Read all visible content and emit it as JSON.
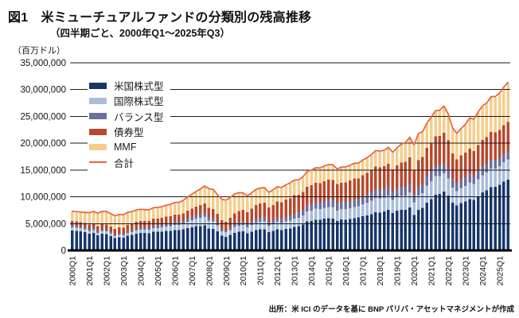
{
  "header": {
    "title": "図1　米ミューチュアルファンドの分類別の残高推移",
    "subtitle": "（四半期ごと、2000年Q1～2025年Q3）"
  },
  "y_axis": {
    "unit_label": "（百万ドル）",
    "tick_labels": [
      "0",
      "5,000,000",
      "10,000,000",
      "15,000,000",
      "20,000,000",
      "25,000,000",
      "30,000,000",
      "35,000,000"
    ]
  },
  "x_axis": {
    "start": "2000Q1",
    "end": "2025Q3",
    "tick_labels": [
      "2000Q1",
      "2001Q1",
      "2002Q1",
      "2003Q1",
      "2004Q1",
      "2005Q1",
      "2006Q1",
      "2007Q1",
      "2008Q1",
      "2009Q1",
      "2010Q1",
      "2011Q1",
      "2012Q1",
      "2013Q1",
      "2014Q1",
      "2015Q1",
      "2016Q1",
      "2017Q1",
      "2018Q1",
      "2019Q1",
      "2020Q1",
      "2021Q1",
      "2022Q1",
      "2023Q1",
      "2024Q1",
      "2025Q1"
    ]
  },
  "legend": [
    {
      "label": "米国株式型",
      "color": "#16356A",
      "swatch": "box"
    },
    {
      "label": "国際株式型",
      "color": "#A9BDD9",
      "swatch": "box"
    },
    {
      "label": "バランス型",
      "color": "#6B6F9D",
      "swatch": "box"
    },
    {
      "label": "債券型",
      "color": "#B8482C",
      "swatch": "box"
    },
    {
      "label": "MMF",
      "color": "#F5CD8C",
      "swatch": "box"
    },
    {
      "label": "合計",
      "color": "#E8603C",
      "swatch": "line"
    }
  ],
  "source": "出所：米 ICI のデータを基に BNP パリバ・アセットマネジメントが作成",
  "chart_data": {
    "type": "bar",
    "subtype": "stacked-bars-with-total-line",
    "unit": "million USD",
    "n_quarters": 103,
    "quarters_start": "2000Q1",
    "quarters_end": "2025Q3",
    "x_tick_labels": [
      "2000Q1",
      "2001Q1",
      "2002Q1",
      "2003Q1",
      "2004Q1",
      "2005Q1",
      "2006Q1",
      "2007Q1",
      "2008Q1",
      "2009Q1",
      "2010Q1",
      "2011Q1",
      "2012Q1",
      "2013Q1",
      "2014Q1",
      "2015Q1",
      "2016Q1",
      "2017Q1",
      "2018Q1",
      "2019Q1",
      "2020Q1",
      "2021Q1",
      "2022Q1",
      "2023Q1",
      "2024Q1",
      "2025Q1"
    ],
    "ylim": [
      0,
      35000000
    ],
    "y_ticks": [
      0,
      5000000,
      10000000,
      15000000,
      20000000,
      25000000,
      30000000,
      35000000
    ],
    "grid": true,
    "legend_position": "upper-left-inside",
    "series": [
      {
        "name": "米国株式型",
        "color": "#16356A",
        "values": [
          3700000,
          3650000,
          3550000,
          3400000,
          3150000,
          3300000,
          2850000,
          3100000,
          3050000,
          2700000,
          2300000,
          2450000,
          2400000,
          2750000,
          2900000,
          3150000,
          3250000,
          3250000,
          3200000,
          3450000,
          3450000,
          3500000,
          3600000,
          3650000,
          3800000,
          3750000,
          3900000,
          4150000,
          4300000,
          4500000,
          4550000,
          4650000,
          4100000,
          4000000,
          3550000,
          2750000,
          2550000,
          2900000,
          3300000,
          3450000,
          3550000,
          3200000,
          3500000,
          3800000,
          3950000,
          3950000,
          3400000,
          3650000,
          3950000,
          3800000,
          4000000,
          4050000,
          4400000,
          4550000,
          4850000,
          5400000,
          5500000,
          5700000,
          5700000,
          5900000,
          6000000,
          5950000,
          5500000,
          5750000,
          5700000,
          5850000,
          6000000,
          6150000,
          6400000,
          6550000,
          6750000,
          7150000,
          7050000,
          7250000,
          7600000,
          7000000,
          7400000,
          7600000,
          7600000,
          8000000,
          6600000,
          7600000,
          7900000,
          8900000,
          9600000,
          10400000,
          10500000,
          11000000,
          10200000,
          8900000,
          8400000,
          8800000,
          9100000,
          9600000,
          9400000,
          10100000,
          10800000,
          11200000,
          11800000,
          11900000,
          12200000,
          12800000,
          13200000
        ]
      },
      {
        "name": "国際株式型",
        "color": "#A9BDD9",
        "values": [
          620000,
          600000,
          580000,
          550000,
          500000,
          520000,
          450000,
          500000,
          500000,
          460000,
          400000,
          420000,
          410000,
          470000,
          510000,
          580000,
          610000,
          620000,
          630000,
          710000,
          740000,
          770000,
          850000,
          900000,
          980000,
          1000000,
          1050000,
          1200000,
          1300000,
          1450000,
          1550000,
          1650000,
          1450000,
          1400000,
          1100000,
          800000,
          750000,
          900000,
          1080000,
          1160000,
          1180000,
          1080000,
          1220000,
          1350000,
          1400000,
          1450000,
          1200000,
          1250000,
          1380000,
          1320000,
          1420000,
          1500000,
          1550000,
          1550000,
          1700000,
          1900000,
          1950000,
          2050000,
          2000000,
          2000000,
          2100000,
          2150000,
          1950000,
          2000000,
          2000000,
          2000000,
          2100000,
          2050000,
          2200000,
          2350000,
          2500000,
          2650000,
          2650000,
          2600000,
          2650000,
          2400000,
          2550000,
          2600000,
          2600000,
          2800000,
          2400000,
          2700000,
          2800000,
          3200000,
          3300000,
          3450000,
          3400000,
          3400000,
          3250000,
          2850000,
          2650000,
          2850000,
          2950000,
          3050000,
          3000000,
          3150000,
          3250000,
          3300000,
          3450000,
          3400000,
          3500000,
          3650000,
          3750000
        ]
      },
      {
        "name": "バランス型",
        "color": "#6B6F9D",
        "values": [
          350000,
          350000,
          340000,
          330000,
          320000,
          330000,
          310000,
          330000,
          330000,
          310000,
          290000,
          300000,
          300000,
          330000,
          350000,
          380000,
          400000,
          410000,
          420000,
          450000,
          460000,
          470000,
          490000,
          500000,
          530000,
          540000,
          560000,
          600000,
          630000,
          660000,
          680000,
          720000,
          660000,
          650000,
          580000,
          480000,
          450000,
          520000,
          600000,
          640000,
          660000,
          620000,
          680000,
          740000,
          780000,
          800000,
          720000,
          760000,
          820000,
          820000,
          870000,
          900000,
          970000,
          1000000,
          1070000,
          1170000,
          1220000,
          1280000,
          1280000,
          1330000,
          1370000,
          1380000,
          1300000,
          1340000,
          1340000,
          1370000,
          1400000,
          1420000,
          1470000,
          1520000,
          1570000,
          1640000,
          1620000,
          1640000,
          1700000,
          1550000,
          1600000,
          1650000,
          1650000,
          1750000,
          1550000,
          1650000,
          1700000,
          1800000,
          1850000,
          1900000,
          1900000,
          1950000,
          1850000,
          1650000,
          1550000,
          1600000,
          1620000,
          1650000,
          1600000,
          1650000,
          1680000,
          1660000,
          1680000,
          1620000,
          1600000,
          1580000,
          1550000
        ]
      },
      {
        "name": "債券型",
        "color": "#B8482C",
        "values": [
          800000,
          800000,
          810000,
          820000,
          860000,
          880000,
          930000,
          930000,
          950000,
          1000000,
          1050000,
          1120000,
          1150000,
          1220000,
          1220000,
          1240000,
          1260000,
          1240000,
          1270000,
          1290000,
          1310000,
          1320000,
          1330000,
          1350000,
          1380000,
          1380000,
          1420000,
          1480000,
          1550000,
          1580000,
          1640000,
          1700000,
          1700000,
          1690000,
          1600000,
          1570000,
          1620000,
          1770000,
          1950000,
          2080000,
          2200000,
          2250000,
          2420000,
          2530000,
          2600000,
          2690000,
          2700000,
          2800000,
          2950000,
          3050000,
          3200000,
          3300000,
          3380000,
          3280000,
          3300000,
          3400000,
          3470000,
          3570000,
          3570000,
          3650000,
          3700000,
          3670000,
          3600000,
          3550000,
          3650000,
          3800000,
          3900000,
          3800000,
          3950000,
          4050000,
          4150000,
          4200000,
          4200000,
          4200000,
          4250000,
          4150000,
          4350000,
          4550000,
          4700000,
          4800000,
          4500000,
          4900000,
          5050000,
          5250000,
          5350000,
          5500000,
          5550000,
          5600000,
          5250000,
          4700000,
          4400000,
          4450000,
          4550000,
          4650000,
          4550000,
          4750000,
          4900000,
          4950000,
          5150000,
          5100000,
          5200000,
          5350000,
          5450000
        ]
      },
      {
        "name": "MMF",
        "color": "#F5CD8C",
        "values": [
          1700000,
          1680000,
          1750000,
          1850000,
          2050000,
          2100000,
          2250000,
          2290000,
          2300000,
          2250000,
          2270000,
          2270000,
          2250000,
          2200000,
          2100000,
          2050000,
          2000000,
          1950000,
          1900000,
          1910000,
          1920000,
          1950000,
          2000000,
          2050000,
          2100000,
          2150000,
          2250000,
          2380000,
          2550000,
          2650000,
          2900000,
          3150000,
          3450000,
          3500000,
          3400000,
          3800000,
          3850000,
          3650000,
          3450000,
          3300000,
          3000000,
          2850000,
          2800000,
          2800000,
          2750000,
          2700000,
          2650000,
          2700000,
          2650000,
          2600000,
          2600000,
          2700000,
          2680000,
          2620000,
          2660000,
          2720000,
          2700000,
          2680000,
          2660000,
          2730000,
          2700000,
          2680000,
          2700000,
          2750000,
          2750000,
          2720000,
          2700000,
          2730000,
          2700000,
          2680000,
          2720000,
          2850000,
          2850000,
          2850000,
          2880000,
          3050000,
          3100000,
          3250000,
          3450000,
          3600000,
          4450000,
          4800000,
          4550000,
          4450000,
          4600000,
          4650000,
          4650000,
          4850000,
          4700000,
          4650000,
          4700000,
          4900000,
          5150000,
          5600000,
          5750000,
          6050000,
          6200000,
          6250000,
          6450000,
          6550000,
          6700000,
          6950000,
          7250000
        ]
      }
    ],
    "line": {
      "name": "合計",
      "color": "#E8603C",
      "definition": "sum of all five series"
    }
  }
}
